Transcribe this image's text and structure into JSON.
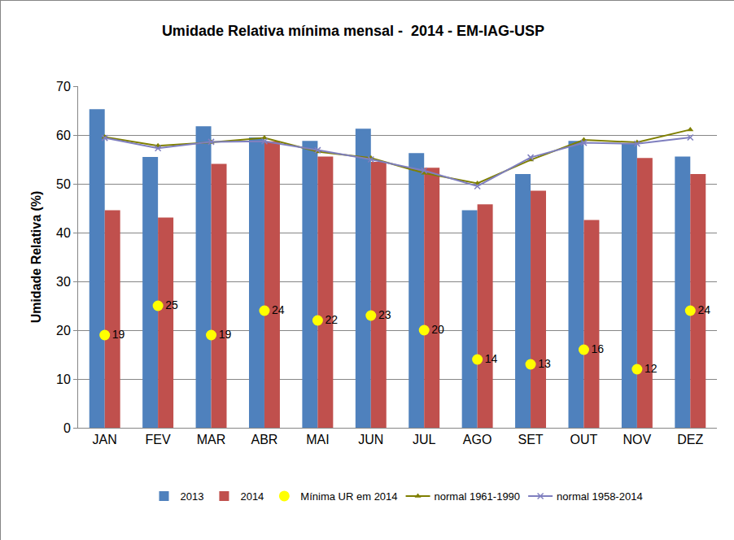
{
  "chart_data": {
    "type": "bar",
    "title": "Umidade Relativa mínima mensal -  2014 - EM-IAG-USP",
    "y_label": "Umidade Relativa (%)",
    "categories": [
      "JAN",
      "FEV",
      "MAR",
      "ABR",
      "MAI",
      "JUN",
      "JUL",
      "AGO",
      "SET",
      "OUT",
      "NOV",
      "DEZ"
    ],
    "series": [
      {
        "name": "2013",
        "type": "bar",
        "color": "#4f81bd",
        "values": [
          65.3,
          55.5,
          61.8,
          59.5,
          58.8,
          61.3,
          56.3,
          44.6,
          52.0,
          58.8,
          58.3,
          55.6
        ]
      },
      {
        "name": "2014",
        "type": "bar",
        "color": "#c0504d",
        "values": [
          44.6,
          43.1,
          54.1,
          58.7,
          55.6,
          54.5,
          53.3,
          45.8,
          48.6,
          42.6,
          55.3,
          52.0
        ]
      },
      {
        "name": "Mínima UR em 2014",
        "type": "scatter",
        "color": "#ffff00",
        "marker": "circle",
        "data_labels": true,
        "values": [
          19,
          25,
          19,
          24,
          22,
          23,
          20,
          14,
          13,
          16,
          12,
          24
        ]
      },
      {
        "name": "normal 1961-1990",
        "type": "line",
        "color": "#7f7f00",
        "marker": "triangle-up",
        "line_style": "solid",
        "values": [
          59.6,
          57.8,
          58.5,
          59.4,
          56.6,
          55.3,
          52.2,
          50.1,
          54.9,
          59.0,
          58.5,
          61.1
        ]
      },
      {
        "name": "normal 1958-2014",
        "type": "line",
        "color": "#7f7fbf",
        "marker": "x",
        "line_style": "solid",
        "values": [
          59.4,
          57.3,
          58.6,
          58.7,
          56.9,
          55.0,
          52.7,
          49.5,
          55.4,
          58.4,
          58.2,
          59.5
        ]
      }
    ],
    "ylim": [
      0,
      70
    ],
    "yticks": [
      0,
      10,
      20,
      30,
      40,
      50,
      60,
      70
    ],
    "grid": true,
    "legend": "bottom"
  }
}
